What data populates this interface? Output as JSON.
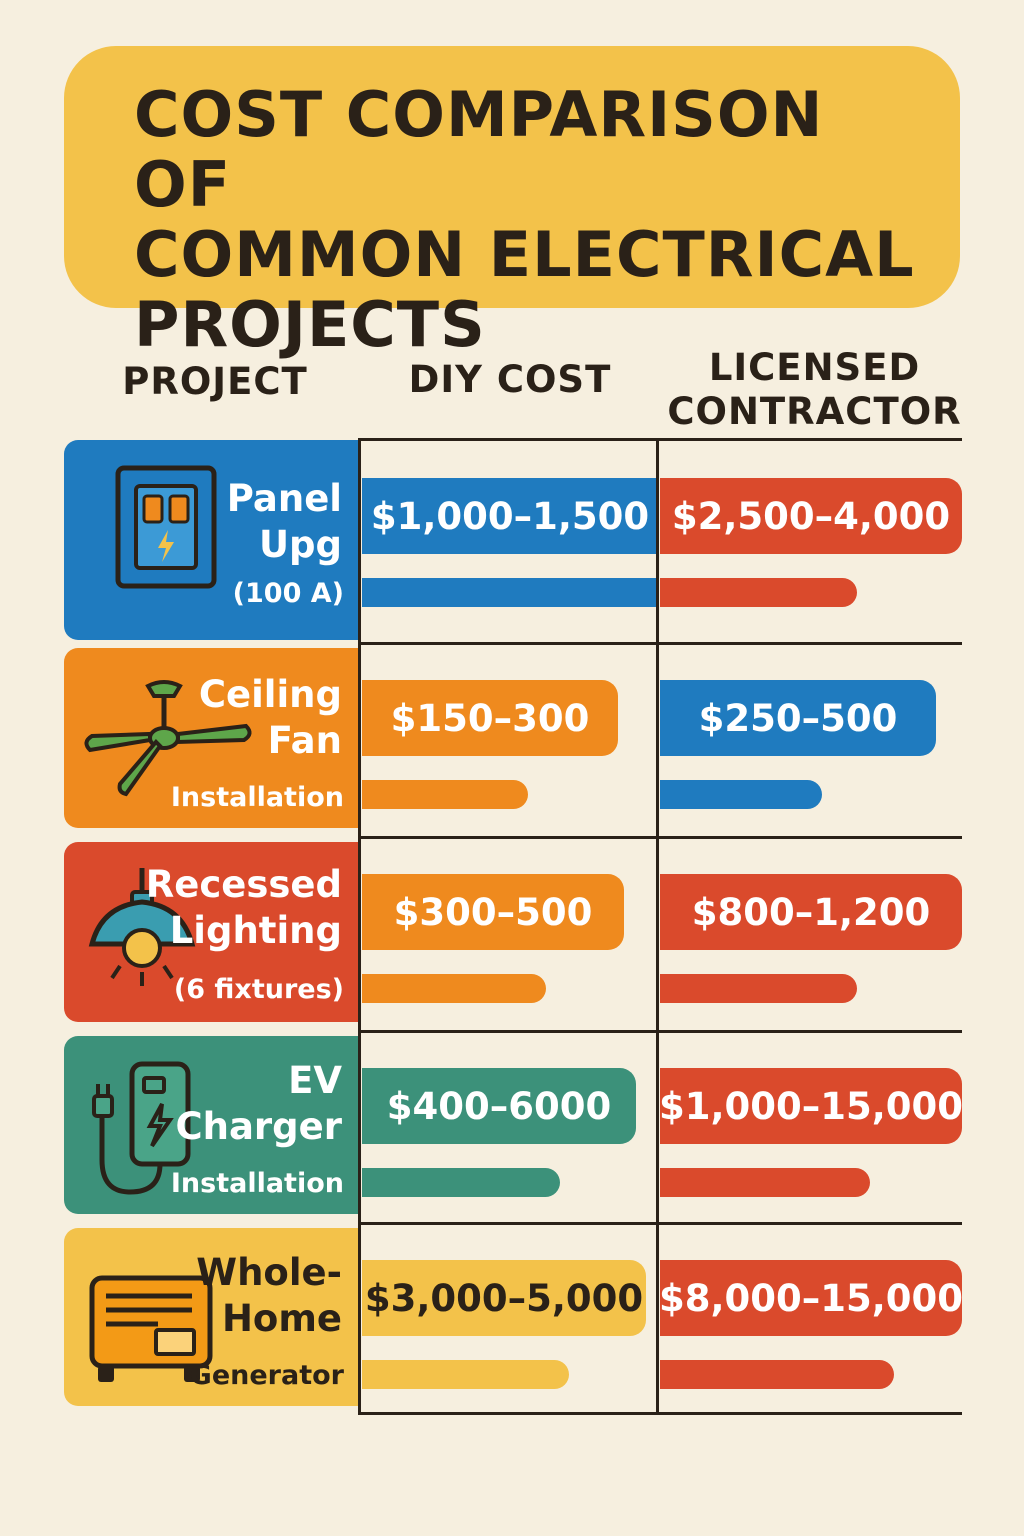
{
  "title": "COST COMPARISON OF\nCOMMON ELECTRICAL\nPROJECTS",
  "headers": {
    "project": "PROJECT",
    "diy": "DIY COST",
    "contractor": "LICENSED\nCONTRACTOR"
  },
  "colors": {
    "blue": "#1f7bbf",
    "orange": "#ef8a1e",
    "red": "#da4a2c",
    "teal": "#3c917a",
    "yellow": "#f3c24a",
    "dark": "#2a2118",
    "background": "#f6efdf"
  },
  "chart_data": {
    "type": "table",
    "columns": [
      "PROJECT",
      "DIY COST",
      "LICENSED CONTRACTOR"
    ],
    "rows": [
      {
        "name": "Panel\nUpg",
        "subtitle": "(100 A)",
        "icon": "electrical-panel-icon",
        "card_color": "#1f7bbf",
        "diy": {
          "label": "$1,000–1,500",
          "color": "#1f7bbf",
          "bar_fraction": 1.0
        },
        "contractor": {
          "label": "$2,500–4,000",
          "color": "#da4a2c",
          "bar_fraction": 0.74
        }
      },
      {
        "name": "Ceiling\nFan",
        "subtitle": "Installation",
        "icon": "ceiling-fan-icon",
        "card_color": "#ef8a1e",
        "diy": {
          "label": "$150–300",
          "color": "#ef8a1e",
          "bar_fraction": 0.56
        },
        "contractor": {
          "label": "$250–500",
          "color": "#1f7bbf",
          "bar_fraction": 0.61
        }
      },
      {
        "name": "Recessed\nLighting",
        "subtitle": "(6 fixtures)",
        "icon": "pendant-lamp-icon",
        "card_color": "#da4a2c",
        "diy": {
          "label": "$300–500",
          "color": "#ef8a1e",
          "bar_fraction": 0.62
        },
        "contractor": {
          "label": "$800–1,200",
          "color": "#da4a2c",
          "bar_fraction": 0.74
        }
      },
      {
        "name": "EV\nCharger",
        "subtitle": "Installation",
        "icon": "ev-charger-icon",
        "card_color": "#3c917a",
        "diy": {
          "label": "$400–6000",
          "color": "#3c917a",
          "bar_fraction": 0.67
        },
        "contractor": {
          "label": "$1,000–15,000",
          "color": "#da4a2c",
          "bar_fraction": 0.79
        }
      },
      {
        "name": "Whole-\nHome",
        "subtitle": "Generator",
        "icon": "generator-icon",
        "card_color": "#f3c24a",
        "diy": {
          "label": "$3,000–5,000",
          "color": "#f3c24a",
          "bar_fraction": 0.7
        },
        "contractor": {
          "label": "$8,000–15,000",
          "color": "#da4a2c",
          "bar_fraction": 0.88
        }
      }
    ]
  }
}
